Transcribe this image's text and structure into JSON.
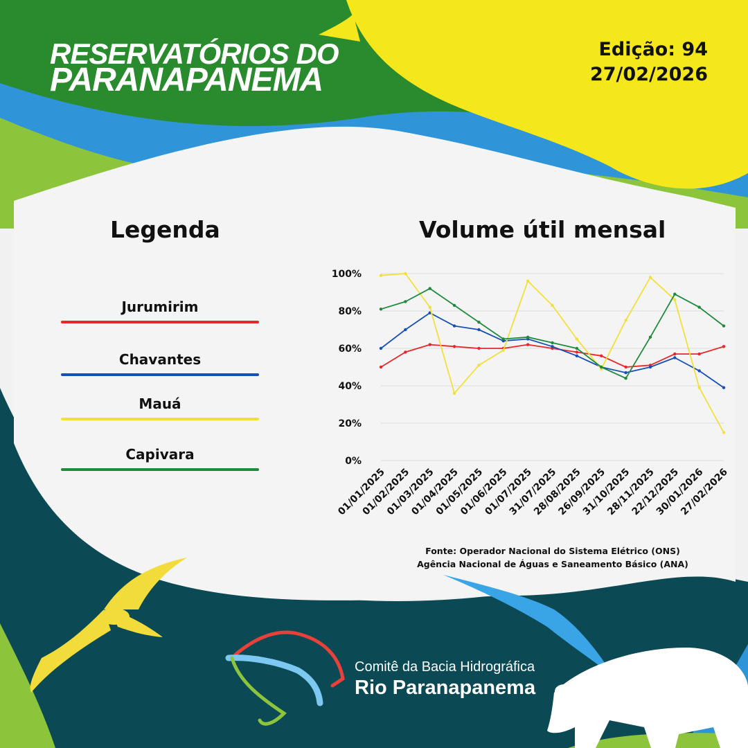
{
  "header": {
    "title_line1": "RESERVATÓRIOS DO",
    "title_line2": "PARANAPANEMA",
    "edition": "Edição: 94",
    "date": "27/02/2026"
  },
  "legend": {
    "title": "Legenda",
    "items": [
      {
        "label": "Jurumirim",
        "color": "#e8262a"
      },
      {
        "label": "Chavantes",
        "color": "#1550b4"
      },
      {
        "label": "Mauá",
        "color": "#f2e03a"
      },
      {
        "label": "Capivara",
        "color": "#1f8a3c"
      }
    ]
  },
  "chart_data": {
    "type": "line",
    "title": "Volume útil mensal",
    "xlabel": "",
    "ylabel": "",
    "ylim": [
      0,
      100
    ],
    "yticks": [
      "0%",
      "20%",
      "40%",
      "60%",
      "80%",
      "100%"
    ],
    "grid": true,
    "categories": [
      "01/01/2025",
      "01/02/2025",
      "01/03/2025",
      "01/04/2025",
      "01/05/2025",
      "01/06/2025",
      "01/07/2025",
      "31/07/2025",
      "28/08/2025",
      "26/09/2025",
      "31/10/2025",
      "28/11/2025",
      "22/12/2025",
      "30/01/2026",
      "27/02/2026"
    ],
    "series": [
      {
        "name": "Jurumirim",
        "color": "#e8262a",
        "values": [
          50,
          58,
          62,
          61,
          60,
          60,
          62,
          60,
          58,
          56,
          50,
          51,
          57,
          57,
          61
        ]
      },
      {
        "name": "Chavantes",
        "color": "#1550b4",
        "values": [
          60,
          70,
          79,
          72,
          70,
          64,
          65,
          61,
          56,
          50,
          47,
          50,
          55,
          48,
          39
        ]
      },
      {
        "name": "Mauá",
        "color": "#f2e03a",
        "values": [
          99,
          100,
          82,
          36,
          51,
          59,
          96,
          83,
          65,
          49,
          75,
          98,
          86,
          39,
          15
        ]
      },
      {
        "name": "Capivara",
        "color": "#1f8a3c",
        "values": [
          81,
          85,
          92,
          83,
          74,
          65,
          66,
          63,
          60,
          50,
          44,
          66,
          89,
          82,
          72
        ]
      }
    ]
  },
  "source": {
    "line1": "Fonte: Operador Nacional do Sistema Elétrico (ONS)",
    "line2": "Agência Nacional de Águas e Saneamento Básico (ANA)"
  },
  "footer": {
    "committee_line1": "Comitê da Bacia Hidrográfica",
    "committee_line2": "Rio Paranapanema"
  },
  "colors": {
    "dark_teal": "#0b4a55",
    "green": "#2a8a2e",
    "yellow": "#f4e81c",
    "blue": "#2f94d8",
    "light_green": "#8cc43c"
  },
  "icons": [
    "bird-icon",
    "bird-icon",
    "capybara-icon",
    "basin-logo-icon"
  ]
}
